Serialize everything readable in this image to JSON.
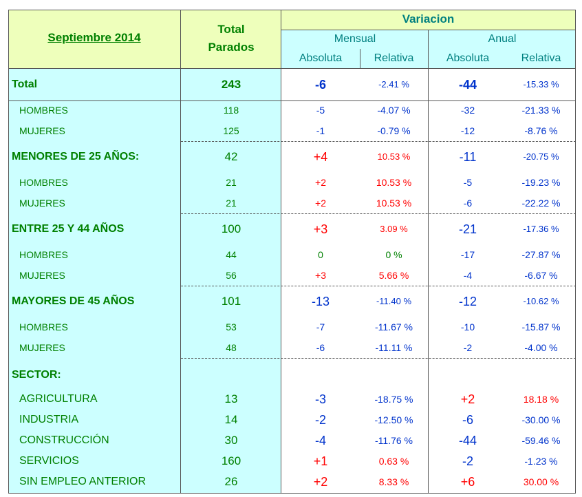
{
  "header": {
    "period": "Septiembre 2014",
    "total": "Total Parados",
    "variacion": "Variacion",
    "groups": [
      "Mensual",
      "Anual"
    ],
    "columns": [
      "Absoluta",
      "Relativa",
      "Absoluta",
      "Relativa"
    ]
  },
  "total": {
    "cells": [
      "Total",
      "243",
      "-6",
      "-2.41 %",
      "-44",
      "-15.33 %"
    ],
    "rows": [
      [
        "HOMBRES",
        "118",
        "-5",
        "-4.07 %",
        "-32",
        "-21.33 %"
      ],
      [
        "MUJERES",
        "125",
        "-1",
        "-0.79 %",
        "-12",
        "-8.76 %"
      ]
    ]
  },
  "groups": [
    {
      "cells": [
        "MENORES DE 25 AÑOS:",
        "42",
        "+4",
        "10.53 %",
        "-11",
        "-20.75 %"
      ],
      "rows": [
        [
          "HOMBRES",
          "21",
          "+2",
          "10.53 %",
          "-5",
          "-19.23 %"
        ],
        [
          "MUJERES",
          "21",
          "+2",
          "10.53 %",
          "-6",
          "-22.22 %"
        ]
      ]
    },
    {
      "cells": [
        "ENTRE 25 Y 44 AÑOS",
        "100",
        "+3",
        "3.09 %",
        "-21",
        "-17.36 %"
      ],
      "rows": [
        [
          "HOMBRES",
          "44",
          "0",
          "0 %",
          "-17",
          "-27.87 %"
        ],
        [
          "MUJERES",
          "56",
          "+3",
          "5.66 %",
          "-4",
          "-6.67 %"
        ]
      ]
    },
    {
      "cells": [
        "MAYORES DE 45 AÑOS",
        "101",
        "-13",
        "-11.40 %",
        "-12",
        "-10.62 %"
      ],
      "rows": [
        [
          "HOMBRES",
          "53",
          "-7",
          "-11.67 %",
          "-10",
          "-15.87 %"
        ],
        [
          "MUJERES",
          "48",
          "-6",
          "-11.11 %",
          "-2",
          "-4.00 %"
        ]
      ]
    }
  ],
  "sector": {
    "label": "SECTOR:",
    "rows": [
      [
        "AGRICULTURA",
        "13",
        "-3",
        "-18.75 %",
        "+2",
        "18.18 %"
      ],
      [
        "INDUSTRIA",
        "14",
        "-2",
        "-12.50 %",
        "-6",
        "-30.00 %"
      ],
      [
        "CONSTRUCCIÓN",
        "30",
        "-4",
        "-11.76 %",
        "-44",
        "-59.46 %"
      ],
      [
        "SERVICIOS",
        "160",
        "+1",
        "0.63 %",
        "-2",
        "-1.23 %"
      ],
      [
        "SIN EMPLEO ANTERIOR",
        "26",
        "+2",
        "8.33 %",
        "+6",
        "30.00 %"
      ]
    ]
  }
}
